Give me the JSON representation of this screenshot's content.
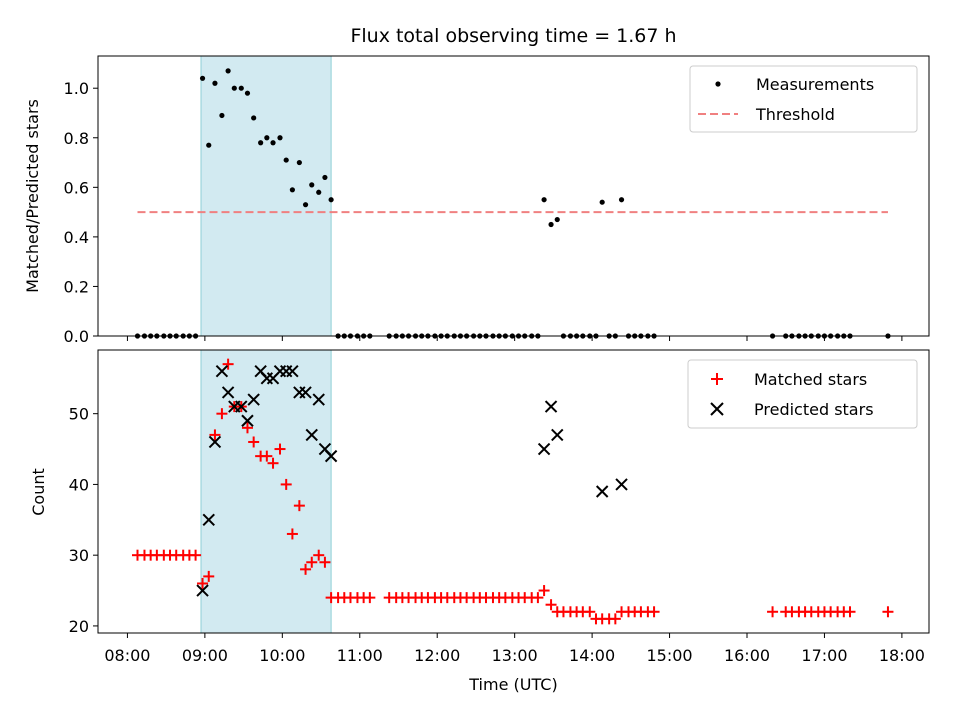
{
  "chart_data": {
    "type": "scatter",
    "title": "Flux total observing time = 1.67 h",
    "xlabel": "Time (UTC)",
    "x_tick_labels": [
      "08:00",
      "09:00",
      "10:00",
      "11:00",
      "12:00",
      "13:00",
      "14:00",
      "15:00",
      "16:00",
      "17:00",
      "18:00"
    ],
    "x_ticks_hours": [
      8,
      9,
      10,
      11,
      12,
      13,
      14,
      15,
      16,
      17,
      18
    ],
    "xlim_hours": [
      7.62,
      18.35
    ],
    "highlight_span_hours": [
      8.95,
      10.63
    ],
    "highlight_color": "#add8e6",
    "panels": [
      {
        "id": "ratio",
        "ylabel": "Matched/Predicted stars",
        "ylim": [
          0,
          1.13
        ],
        "y_ticks": [
          0.0,
          0.2,
          0.4,
          0.6,
          0.8,
          1.0
        ],
        "y_tick_labels": [
          "0.0",
          "0.2",
          "0.4",
          "0.6",
          "0.8",
          "1.0"
        ],
        "legend_position": "top-right",
        "threshold": {
          "name": "Threshold",
          "y": 0.5,
          "x_range_hours": [
            8.13,
            17.82
          ],
          "color": "#f08080"
        },
        "series": [
          {
            "name": "Measurements",
            "marker": "dot",
            "color": "#000000",
            "points": [
              [
                8.13,
                0
              ],
              [
                8.22,
                0
              ],
              [
                8.3,
                0
              ],
              [
                8.38,
                0
              ],
              [
                8.47,
                0
              ],
              [
                8.55,
                0
              ],
              [
                8.63,
                0
              ],
              [
                8.72,
                0
              ],
              [
                8.8,
                0
              ],
              [
                8.88,
                0
              ],
              [
                8.97,
                1.04
              ],
              [
                9.05,
                0.77
              ],
              [
                9.13,
                1.02
              ],
              [
                9.22,
                0.89
              ],
              [
                9.3,
                1.07
              ],
              [
                9.38,
                1.0
              ],
              [
                9.47,
                1.0
              ],
              [
                9.55,
                0.98
              ],
              [
                9.63,
                0.88
              ],
              [
                9.72,
                0.78
              ],
              [
                9.8,
                0.8
              ],
              [
                9.88,
                0.78
              ],
              [
                9.97,
                0.8
              ],
              [
                10.05,
                0.71
              ],
              [
                10.13,
                0.59
              ],
              [
                10.22,
                0.7
              ],
              [
                10.3,
                0.53
              ],
              [
                10.38,
                0.61
              ],
              [
                10.47,
                0.58
              ],
              [
                10.55,
                0.64
              ],
              [
                10.63,
                0.55
              ],
              [
                10.72,
                0
              ],
              [
                10.8,
                0
              ],
              [
                10.88,
                0
              ],
              [
                10.97,
                0
              ],
              [
                11.05,
                0
              ],
              [
                11.13,
                0
              ],
              [
                11.38,
                0
              ],
              [
                11.47,
                0
              ],
              [
                11.55,
                0
              ],
              [
                11.63,
                0
              ],
              [
                11.72,
                0
              ],
              [
                11.8,
                0
              ],
              [
                11.88,
                0
              ],
              [
                11.97,
                0
              ],
              [
                12.05,
                0
              ],
              [
                12.13,
                0
              ],
              [
                12.22,
                0
              ],
              [
                12.3,
                0
              ],
              [
                12.38,
                0
              ],
              [
                12.47,
                0
              ],
              [
                12.55,
                0
              ],
              [
                12.63,
                0
              ],
              [
                12.72,
                0
              ],
              [
                12.8,
                0
              ],
              [
                12.88,
                0
              ],
              [
                12.97,
                0
              ],
              [
                13.05,
                0
              ],
              [
                13.13,
                0
              ],
              [
                13.22,
                0
              ],
              [
                13.3,
                0
              ],
              [
                13.38,
                0.55
              ],
              [
                13.47,
                0.45
              ],
              [
                13.55,
                0.47
              ],
              [
                13.63,
                0
              ],
              [
                13.72,
                0
              ],
              [
                13.8,
                0
              ],
              [
                13.88,
                0
              ],
              [
                13.97,
                0
              ],
              [
                14.05,
                0
              ],
              [
                14.13,
                0.54
              ],
              [
                14.22,
                0
              ],
              [
                14.3,
                0
              ],
              [
                14.38,
                0.55
              ],
              [
                14.47,
                0
              ],
              [
                14.55,
                0
              ],
              [
                14.63,
                0
              ],
              [
                14.72,
                0
              ],
              [
                14.8,
                0
              ],
              [
                16.33,
                0
              ],
              [
                16.5,
                0
              ],
              [
                16.58,
                0
              ],
              [
                16.67,
                0
              ],
              [
                16.75,
                0
              ],
              [
                16.83,
                0
              ],
              [
                16.92,
                0
              ],
              [
                17.0,
                0
              ],
              [
                17.08,
                0
              ],
              [
                17.17,
                0
              ],
              [
                17.25,
                0
              ],
              [
                17.33,
                0
              ],
              [
                17.82,
                0
              ]
            ]
          }
        ]
      },
      {
        "id": "count",
        "ylabel": "Count",
        "ylim": [
          19,
          59
        ],
        "y_ticks": [
          20,
          30,
          40,
          50
        ],
        "y_tick_labels": [
          "20",
          "30",
          "40",
          "50"
        ],
        "legend_position": "top-right",
        "series": [
          {
            "name": "Matched stars",
            "marker": "plus",
            "color": "#ff0000",
            "points": [
              [
                8.13,
                30
              ],
              [
                8.22,
                30
              ],
              [
                8.3,
                30
              ],
              [
                8.38,
                30
              ],
              [
                8.47,
                30
              ],
              [
                8.55,
                30
              ],
              [
                8.63,
                30
              ],
              [
                8.72,
                30
              ],
              [
                8.8,
                30
              ],
              [
                8.88,
                30
              ],
              [
                8.97,
                26
              ],
              [
                9.05,
                27
              ],
              [
                9.13,
                47
              ],
              [
                9.22,
                50
              ],
              [
                9.3,
                57
              ],
              [
                9.38,
                51
              ],
              [
                9.47,
                51
              ],
              [
                9.55,
                48
              ],
              [
                9.63,
                46
              ],
              [
                9.72,
                44
              ],
              [
                9.8,
                44
              ],
              [
                9.88,
                43
              ],
              [
                9.97,
                45
              ],
              [
                10.05,
                40
              ],
              [
                10.13,
                33
              ],
              [
                10.22,
                37
              ],
              [
                10.3,
                28
              ],
              [
                10.38,
                29
              ],
              [
                10.47,
                30
              ],
              [
                10.55,
                29
              ],
              [
                10.63,
                24
              ],
              [
                10.72,
                24
              ],
              [
                10.8,
                24
              ],
              [
                10.88,
                24
              ],
              [
                10.97,
                24
              ],
              [
                11.05,
                24
              ],
              [
                11.13,
                24
              ],
              [
                11.38,
                24
              ],
              [
                11.47,
                24
              ],
              [
                11.55,
                24
              ],
              [
                11.63,
                24
              ],
              [
                11.72,
                24
              ],
              [
                11.8,
                24
              ],
              [
                11.88,
                24
              ],
              [
                11.97,
                24
              ],
              [
                12.05,
                24
              ],
              [
                12.13,
                24
              ],
              [
                12.22,
                24
              ],
              [
                12.3,
                24
              ],
              [
                12.38,
                24
              ],
              [
                12.47,
                24
              ],
              [
                12.55,
                24
              ],
              [
                12.63,
                24
              ],
              [
                12.72,
                24
              ],
              [
                12.8,
                24
              ],
              [
                12.88,
                24
              ],
              [
                12.97,
                24
              ],
              [
                13.05,
                24
              ],
              [
                13.13,
                24
              ],
              [
                13.22,
                24
              ],
              [
                13.3,
                24
              ],
              [
                13.38,
                25
              ],
              [
                13.47,
                23
              ],
              [
                13.55,
                22
              ],
              [
                13.63,
                22
              ],
              [
                13.72,
                22
              ],
              [
                13.8,
                22
              ],
              [
                13.88,
                22
              ],
              [
                13.97,
                22
              ],
              [
                14.05,
                21
              ],
              [
                14.13,
                21
              ],
              [
                14.22,
                21
              ],
              [
                14.3,
                21
              ],
              [
                14.38,
                22
              ],
              [
                14.47,
                22
              ],
              [
                14.55,
                22
              ],
              [
                14.63,
                22
              ],
              [
                14.72,
                22
              ],
              [
                14.8,
                22
              ],
              [
                16.33,
                22
              ],
              [
                16.5,
                22
              ],
              [
                16.58,
                22
              ],
              [
                16.67,
                22
              ],
              [
                16.75,
                22
              ],
              [
                16.83,
                22
              ],
              [
                16.92,
                22
              ],
              [
                17.0,
                22
              ],
              [
                17.08,
                22
              ],
              [
                17.17,
                22
              ],
              [
                17.25,
                22
              ],
              [
                17.33,
                22
              ],
              [
                17.82,
                22
              ]
            ]
          },
          {
            "name": "Predicted stars",
            "marker": "x",
            "color": "#000000",
            "points": [
              [
                8.97,
                25
              ],
              [
                9.05,
                35
              ],
              [
                9.13,
                46
              ],
              [
                9.22,
                56
              ],
              [
                9.3,
                53
              ],
              [
                9.38,
                51
              ],
              [
                9.47,
                51
              ],
              [
                9.55,
                49
              ],
              [
                9.63,
                52
              ],
              [
                9.72,
                56
              ],
              [
                9.8,
                55
              ],
              [
                9.88,
                55
              ],
              [
                9.97,
                56
              ],
              [
                10.05,
                56
              ],
              [
                10.13,
                56
              ],
              [
                10.22,
                53
              ],
              [
                10.3,
                53
              ],
              [
                10.38,
                47
              ],
              [
                10.47,
                52
              ],
              [
                10.55,
                45
              ],
              [
                10.63,
                44
              ],
              [
                13.38,
                45
              ],
              [
                13.47,
                51
              ],
              [
                13.55,
                47
              ],
              [
                14.13,
                39
              ],
              [
                14.38,
                40
              ]
            ]
          }
        ]
      }
    ]
  }
}
